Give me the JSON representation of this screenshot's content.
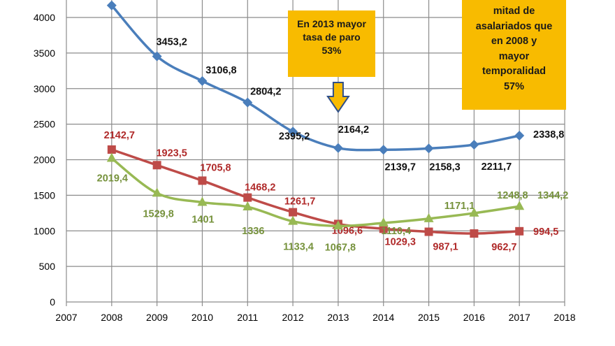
{
  "chart_data": {
    "type": "line",
    "x": [
      2008,
      2009,
      2010,
      2011,
      2012,
      2013,
      2014,
      2015,
      2016,
      2017
    ],
    "xlim": [
      2007,
      2018
    ],
    "ylim": [
      0,
      4000
    ],
    "xticks": [
      2007,
      2008,
      2009,
      2010,
      2011,
      2012,
      2013,
      2014,
      2015,
      2016,
      2017,
      2018
    ],
    "yticks": [
      0,
      500,
      1000,
      1500,
      2000,
      2500,
      3000,
      3500,
      4000
    ],
    "grid": true,
    "series": [
      {
        "color": "#4a7ebb",
        "marker": "diamond",
        "label_color": "#111111",
        "values": [
          4170,
          3453.2,
          3106.8,
          2804.2,
          2395.2,
          2164.2,
          2139.7,
          2158.3,
          2211.7,
          2338.8
        ],
        "labels": [
          "",
          "3453,2",
          "3106,8",
          "2804,2",
          "2395,2",
          "2164,2",
          "2139,7",
          "2158,3",
          "2211,7",
          "2338,8"
        ]
      },
      {
        "color": "#be4b48",
        "marker": "square",
        "label_color": "#b02a2a",
        "values": [
          2142.7,
          1923.5,
          1705.8,
          1468.2,
          1261.7,
          1096.6,
          1029.3,
          987.1,
          962.7,
          994.5
        ],
        "labels": [
          "2142,7",
          "1923,5",
          "1705,8",
          "1468,2",
          "1261,7",
          "1096,6",
          "1029,3",
          "987,1",
          "962,7",
          "994,5"
        ]
      },
      {
        "color": "#98b954",
        "marker": "triangle",
        "label_color": "#76923c",
        "values": [
          2019.4,
          1529.8,
          1401,
          1336,
          1133.4,
          1067.8,
          1110.4,
          1171.1,
          1248.8,
          1344.2
        ],
        "labels": [
          "2019,4",
          "1529,8",
          "1401",
          "1336",
          "1133,4",
          "1067,8",
          "1110,4",
          "1171,1",
          "1248,8",
          "1344,2"
        ]
      }
    ],
    "annotations": [
      {
        "lines": [
          "En 2013 mayor",
          "tasa de paro",
          "53%"
        ],
        "color": "#f8bb00",
        "arrow": "down-arrow",
        "x": 2013
      },
      {
        "lines": [
          "mitad de",
          "asalariados que",
          "en 2008 y",
          "mayor",
          "temporalidad",
          "57%"
        ],
        "color": "#f8bb00"
      }
    ]
  }
}
